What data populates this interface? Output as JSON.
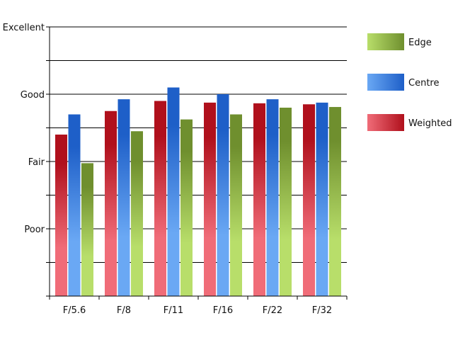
{
  "chart_data": {
    "type": "bar",
    "title": "",
    "xlabel": "",
    "ylabel": "",
    "categories": [
      "F/5.6",
      "F/8",
      "F/11",
      "F/16",
      "F/22",
      "F/32"
    ],
    "y_ticks": [
      {
        "value": 0,
        "label": ""
      },
      {
        "value": 1,
        "label": ""
      },
      {
        "value": 2,
        "label": "Poor"
      },
      {
        "value": 3,
        "label": ""
      },
      {
        "value": 4,
        "label": "Fair"
      },
      {
        "value": 5,
        "label": ""
      },
      {
        "value": 6,
        "label": "Good"
      },
      {
        "value": 7,
        "label": ""
      },
      {
        "value": 8,
        "label": "Excellent"
      }
    ],
    "ylim": [
      0,
      8
    ],
    "grid": true,
    "legend_position": "right",
    "series": [
      {
        "name": "Weighted",
        "values": [
          4.8,
          5.5,
          5.8,
          5.75,
          5.73,
          5.7
        ],
        "colors": {
          "light": "#f06c78",
          "dark": "#b0101c"
        }
      },
      {
        "name": "Centre",
        "values": [
          5.4,
          5.85,
          6.2,
          6.0,
          5.85,
          5.75
        ],
        "colors": {
          "light": "#6aa8f4",
          "dark": "#1e5fc8"
        }
      },
      {
        "name": "Edge",
        "values": [
          3.95,
          4.9,
          5.25,
          5.4,
          5.6,
          5.62
        ],
        "colors": {
          "light": "#b8de6a",
          "dark": "#6f8f2e"
        }
      }
    ],
    "legend_order": [
      "Edge",
      "Centre",
      "Weighted"
    ]
  }
}
